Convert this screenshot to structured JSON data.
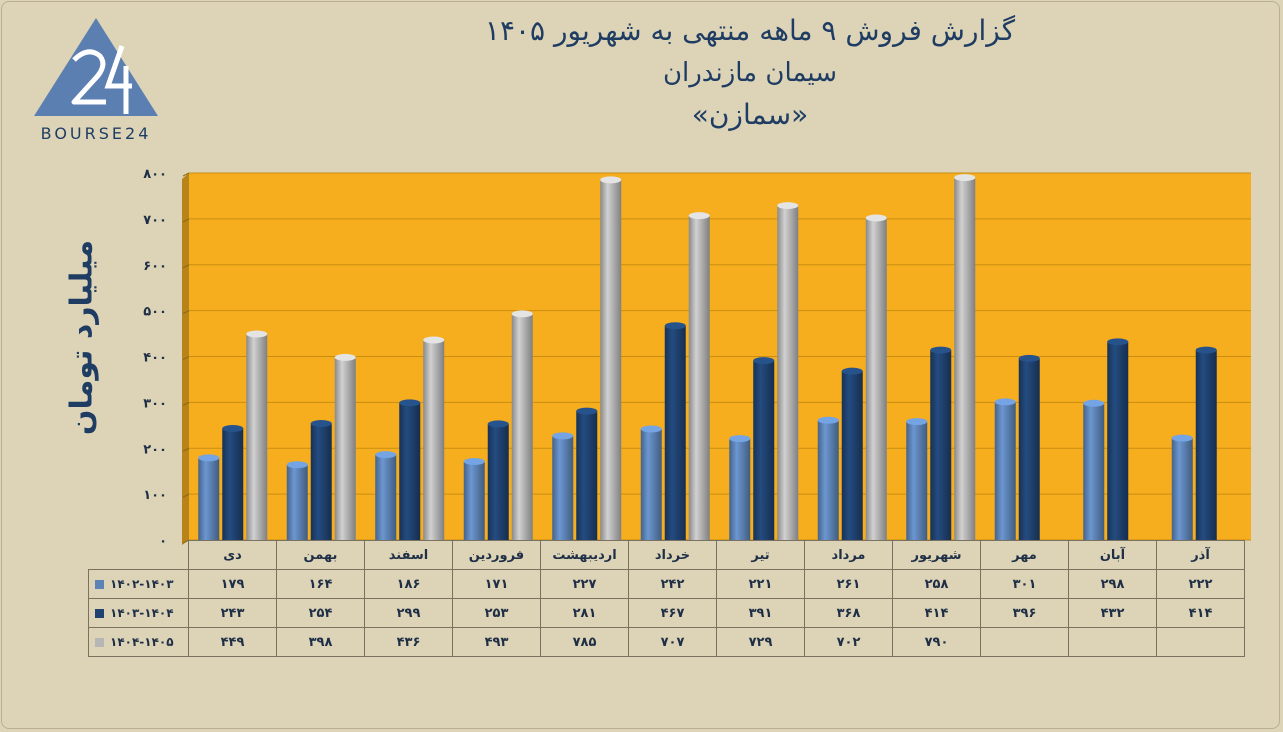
{
  "header": {
    "line1": "گزارش  فروش ۹ ماهه منتهی به شهریور ۱۴۰۵",
    "line2": "سیمان مازندران",
    "line3": "«سمازن»"
  },
  "logo": {
    "icon": "triangle-24-logo",
    "text": "BOURSE24",
    "color": "#5b7fb1"
  },
  "colors": {
    "background": "#ddd4b8",
    "plot_area": "#f6ae1e",
    "series1": "#5d83b6",
    "series2": "#1f4270",
    "series3": "#b6b6b6"
  },
  "chart_data": {
    "type": "bar",
    "ylabel": "میلیارد تومان",
    "ylim": [
      0,
      800
    ],
    "yticks": [
      0,
      100,
      200,
      300,
      400,
      500,
      600,
      700,
      800
    ],
    "ytick_labels": [
      "۰",
      "۱۰۰",
      "۲۰۰",
      "۳۰۰",
      "۴۰۰",
      "۵۰۰",
      "۶۰۰",
      "۷۰۰",
      "۸۰۰"
    ],
    "grid": true,
    "legend": "table-bottom",
    "categories": [
      "دی",
      "بهمن",
      "اسفند",
      "فروردین",
      "اردیبهشت",
      "خرداد",
      "تیر",
      "مرداد",
      "شهریور",
      "مهر",
      "آبان",
      "آذر"
    ],
    "series": [
      {
        "name": "۱۴۰۲-۱۴۰۳",
        "values": [
          179,
          164,
          186,
          171,
          227,
          242,
          221,
          261,
          258,
          301,
          298,
          222
        ],
        "labels": [
          "۱۷۹",
          "۱۶۴",
          "۱۸۶",
          "۱۷۱",
          "۲۲۷",
          "۲۴۲",
          "۲۲۱",
          "۲۶۱",
          "۲۵۸",
          "۳۰۱",
          "۲۹۸",
          "۲۲۲"
        ]
      },
      {
        "name": "۱۴۰۳-۱۴۰۴",
        "values": [
          243,
          254,
          299,
          253,
          281,
          467,
          391,
          368,
          414,
          396,
          432,
          414
        ],
        "labels": [
          "۲۴۳",
          "۲۵۴",
          "۲۹۹",
          "۲۵۳",
          "۲۸۱",
          "۴۶۷",
          "۳۹۱",
          "۳۶۸",
          "۴۱۴",
          "۳۹۶",
          "۴۳۲",
          "۴۱۴"
        ]
      },
      {
        "name": "۱۴۰۴-۱۴۰۵",
        "values": [
          449,
          398,
          436,
          493,
          785,
          707,
          729,
          702,
          790,
          null,
          null,
          null
        ],
        "labels": [
          "۴۴۹",
          "۳۹۸",
          "۴۳۶",
          "۴۹۳",
          "۷۸۵",
          "۷۰۷",
          "۷۲۹",
          "۷۰۲",
          "۷۹۰",
          "",
          "",
          ""
        ]
      }
    ]
  }
}
